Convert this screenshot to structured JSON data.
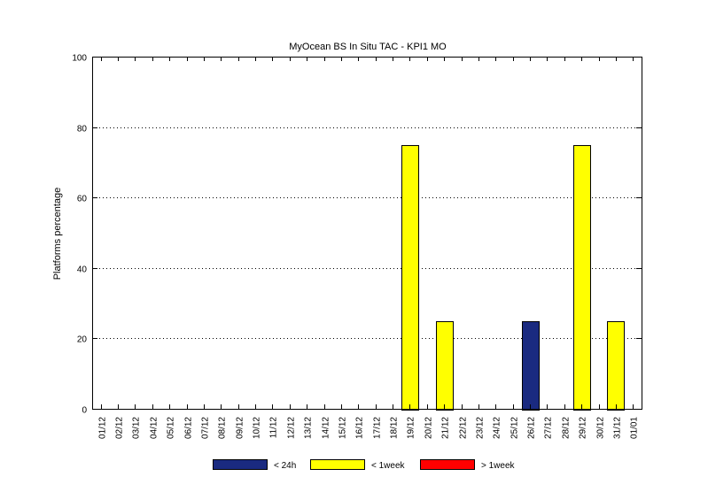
{
  "chart_data": {
    "type": "bar",
    "title": "MyOcean  BS In Situ TAC - KPI1  MO",
    "xlabel": "",
    "ylabel": "Platforms percentage",
    "ylim": [
      0,
      100
    ],
    "yticks": [
      0,
      20,
      40,
      60,
      80,
      100
    ],
    "grid": "horizontal dotted",
    "legend_position": "bottom",
    "categories": [
      "01/12",
      "02/12",
      "03/12",
      "04/12",
      "05/12",
      "06/12",
      "07/12",
      "08/12",
      "09/12",
      "10/12",
      "11/12",
      "12/12",
      "13/12",
      "14/12",
      "15/12",
      "16/12",
      "17/12",
      "18/12",
      "19/12",
      "20/12",
      "21/12",
      "22/12",
      "23/12",
      "24/12",
      "25/12",
      "26/12",
      "27/12",
      "28/12",
      "29/12",
      "30/12",
      "31/12",
      "01/01"
    ],
    "series": [
      {
        "name": "< 24h",
        "color": "#1a2a80",
        "values": [
          0,
          0,
          0,
          0,
          0,
          0,
          0,
          0,
          0,
          0,
          0,
          0,
          0,
          0,
          0,
          0,
          0,
          0,
          0,
          0,
          0,
          0,
          0,
          0,
          0,
          25,
          0,
          0,
          0,
          0,
          0,
          0
        ]
      },
      {
        "name": "< 1week",
        "color": "#ffff00",
        "values": [
          0,
          0,
          0,
          0,
          0,
          0,
          0,
          0,
          0,
          0,
          0,
          0,
          0,
          0,
          0,
          0,
          0,
          0,
          75,
          0,
          25,
          0,
          0,
          0,
          0,
          0,
          0,
          0,
          75,
          0,
          25,
          0
        ]
      },
      {
        "name": "> 1week",
        "color": "#ff0000",
        "values": [
          0,
          0,
          0,
          0,
          0,
          0,
          0,
          0,
          0,
          0,
          0,
          0,
          0,
          0,
          0,
          0,
          0,
          0,
          0,
          0,
          0,
          0,
          0,
          0,
          0,
          0,
          0,
          0,
          0,
          0,
          0,
          0
        ]
      }
    ]
  }
}
